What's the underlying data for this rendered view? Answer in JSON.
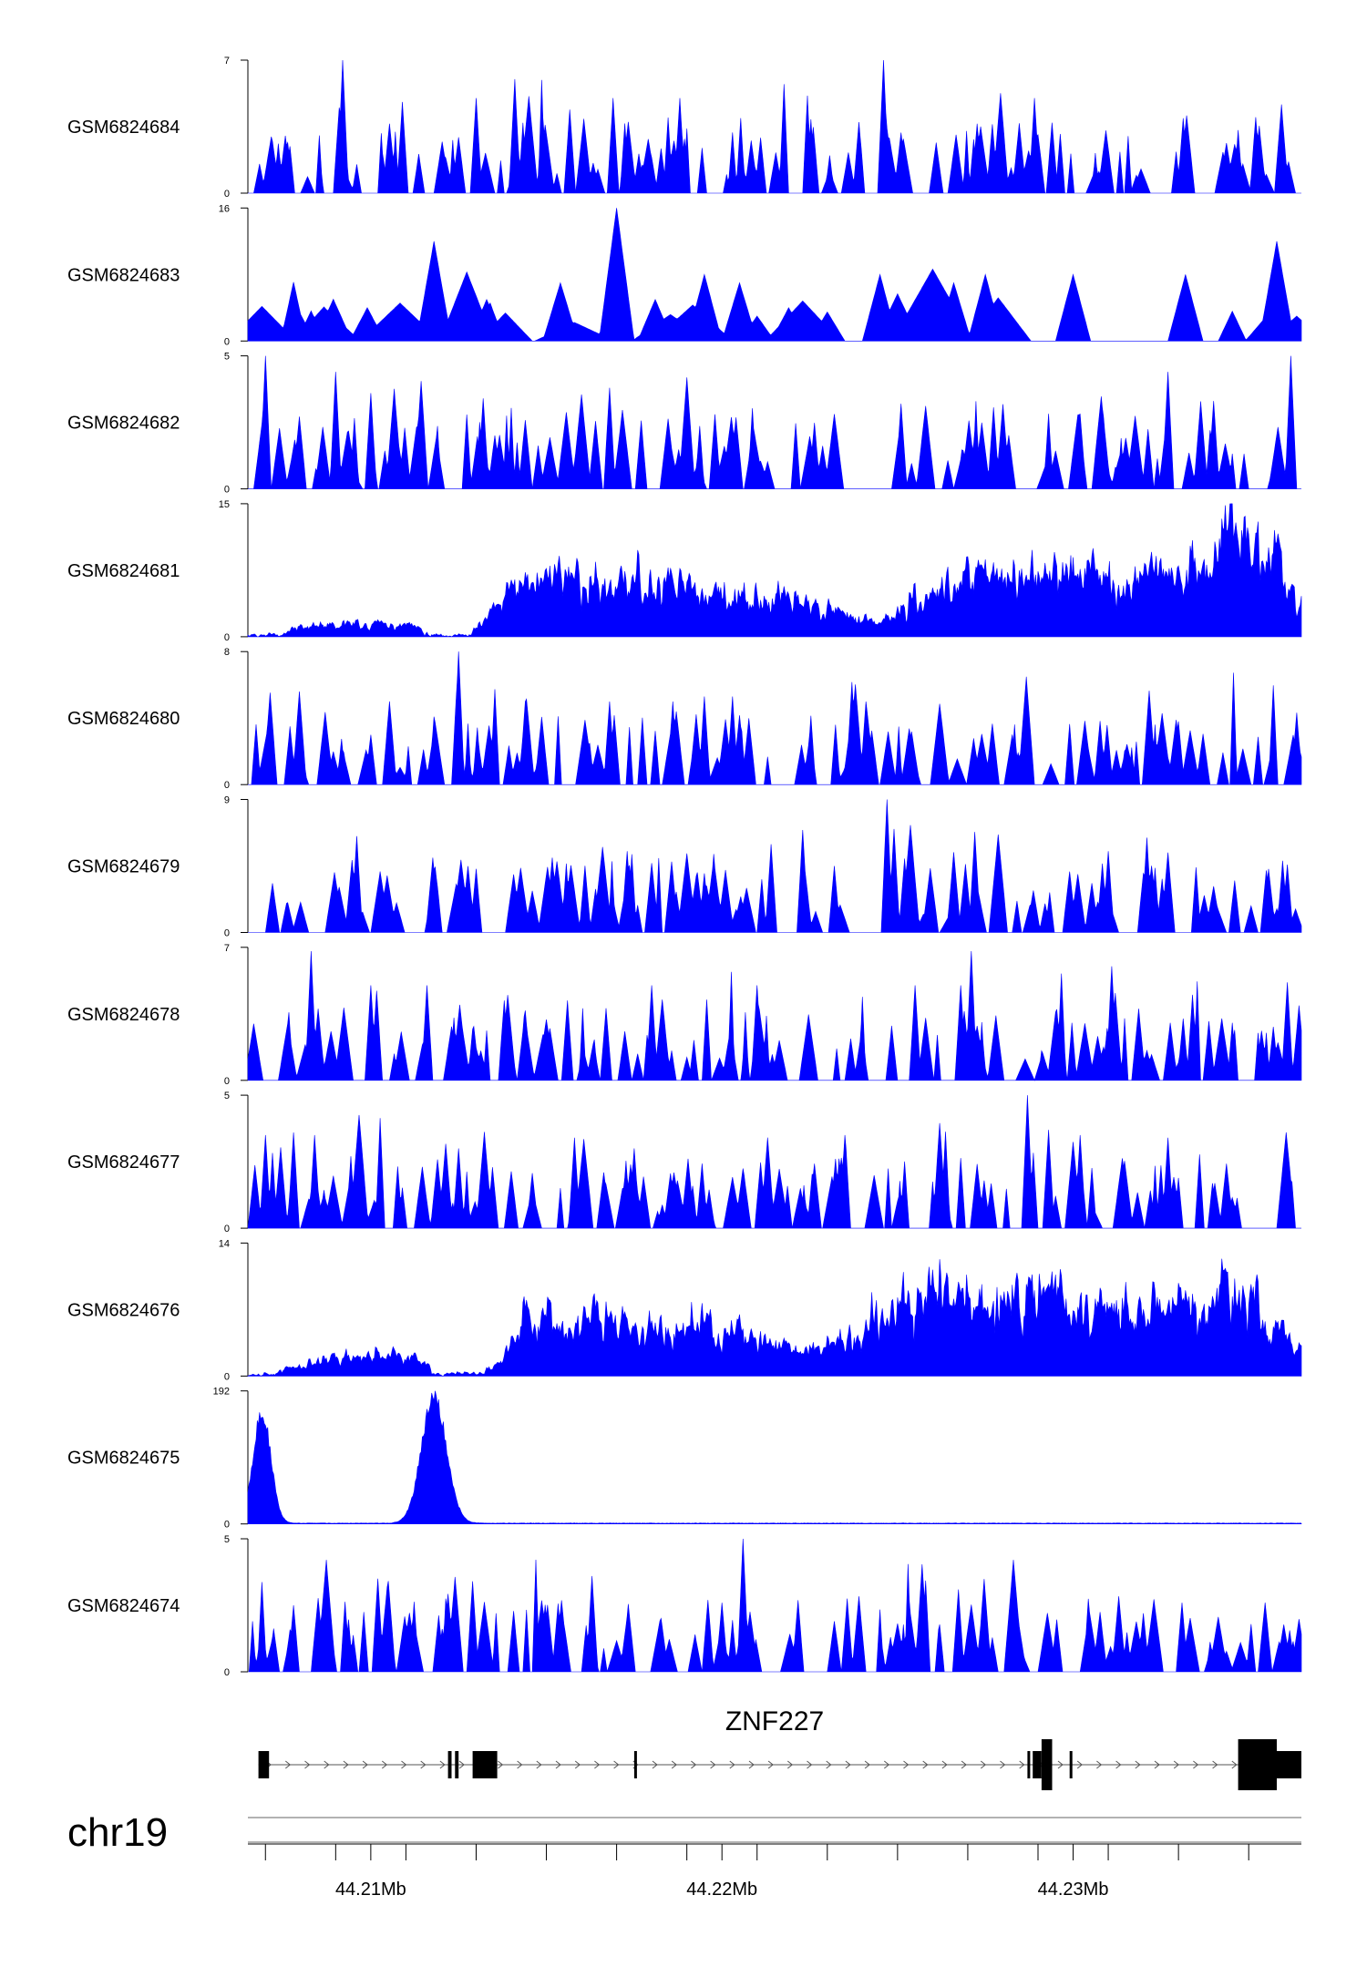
{
  "chart_data": {
    "type": "area",
    "chromosome": "chr19",
    "region": {
      "start": 44.2065,
      "end": 44.2365,
      "unit": "Mb"
    },
    "x_ticks": [
      44.207,
      44.209,
      44.211,
      44.213,
      44.215,
      44.217,
      44.219,
      44.221,
      44.223,
      44.225,
      44.227,
      44.229,
      44.231,
      44.233,
      44.235
    ],
    "x_tick_labels": [
      {
        "pos": 44.21,
        "text": "44.21Mb"
      },
      {
        "pos": 44.22,
        "text": "44.22Mb"
      },
      {
        "pos": 44.23,
        "text": "44.23Mb"
      }
    ],
    "fill_color": "#0000ff",
    "tracks": [
      {
        "name": "GSM6824684",
        "ymin": 0,
        "ymax": 7,
        "ymin_label": "0",
        "ymax_label": "7",
        "style": "sparse",
        "seed": 11,
        "peaks": [
          [
            44.2092,
            7
          ],
          [
            44.2141,
            6
          ],
          [
            44.2246,
            7
          ],
          [
            44.213,
            5
          ],
          [
            44.2169,
            5
          ],
          [
            44.2188,
            5
          ],
          [
            44.2109,
            4.8
          ],
          [
            44.2289,
            5
          ],
          [
            44.2352,
            4
          ],
          [
            44.2091,
            4.5
          ]
        ]
      },
      {
        "name": "GSM6824683",
        "ymin": 0,
        "ymax": 16,
        "ymin_label": "0",
        "ymax_label": "16",
        "style": "sparse_tri",
        "seed": 23,
        "peaks": [
          [
            44.217,
            16
          ],
          [
            44.2118,
            12
          ],
          [
            44.2358,
            12
          ],
          [
            44.2195,
            8
          ],
          [
            44.2219,
            4
          ],
          [
            44.223,
            3.5
          ],
          [
            44.2245,
            8
          ],
          [
            44.226,
            8
          ],
          [
            44.2275,
            8
          ],
          [
            44.23,
            8
          ],
          [
            44.2332,
            8
          ],
          [
            44.2079,
            4
          ],
          [
            44.2099,
            4
          ],
          [
            44.2133,
            5
          ],
          [
            44.2154,
            7
          ],
          [
            44.2181,
            5
          ],
          [
            44.221,
            3
          ],
          [
            44.2205,
            7
          ],
          [
            44.2266,
            7
          ]
        ]
      },
      {
        "name": "GSM6824682",
        "ymin": 0,
        "ymax": 5,
        "ymin_label": "0",
        "ymax_label": "5",
        "style": "sparse",
        "seed": 37,
        "peaks": [
          [
            44.207,
            5
          ],
          [
            44.209,
            4.4
          ],
          [
            44.2168,
            3.8
          ],
          [
            44.2327,
            4.4
          ],
          [
            44.2362,
            5
          ],
          [
            44.234,
            3.3
          ],
          [
            44.2251,
            3.2
          ],
          [
            44.21,
            3.6
          ],
          [
            44.2132,
            3.4
          ],
          [
            44.2198,
            2.8
          ]
        ]
      },
      {
        "name": "GSM6824681",
        "ymin": 0,
        "ymax": 15,
        "ymin_label": "0",
        "ymax_label": "15",
        "style": "dense",
        "seed": 41,
        "envelope": [
          [
            44.2065,
            0.3
          ],
          [
            44.208,
            1.2
          ],
          [
            44.2095,
            1.8
          ],
          [
            44.211,
            1.5
          ],
          [
            44.2121,
            0.4
          ],
          [
            44.2129,
            0.8
          ],
          [
            44.2137,
            5
          ],
          [
            44.215,
            8.5
          ],
          [
            44.2165,
            7.2
          ],
          [
            44.218,
            7.5
          ],
          [
            44.22,
            5.5
          ],
          [
            44.2215,
            5.2
          ],
          [
            44.223,
            3.5
          ],
          [
            44.2245,
            1.5
          ],
          [
            44.2255,
            5.5
          ],
          [
            44.227,
            7.5
          ],
          [
            44.2285,
            8
          ],
          [
            44.23,
            9
          ],
          [
            44.2315,
            7
          ],
          [
            44.2335,
            10
          ],
          [
            44.235,
            12.5
          ],
          [
            44.2358,
            9
          ],
          [
            44.2365,
            4
          ]
        ]
      },
      {
        "name": "GSM6824680",
        "ymin": 0,
        "ymax": 8,
        "ymin_label": "0",
        "ymax_label": "8",
        "style": "sparse",
        "seed": 53,
        "peaks": [
          [
            44.2125,
            8
          ],
          [
            44.2195,
            5.3
          ],
          [
            44.2203,
            5.3
          ],
          [
            44.2144,
            5
          ],
          [
            44.2168,
            5
          ],
          [
            44.2186,
            5
          ],
          [
            44.2241,
            5
          ],
          [
            44.21,
            3
          ],
          [
            44.2077,
            3.5
          ],
          [
            44.233,
            3.8
          ]
        ]
      },
      {
        "name": "GSM6824679",
        "ymin": 0,
        "ymax": 9,
        "ymin_label": "0",
        "ymax_label": "9",
        "style": "sparse",
        "seed": 61,
        "peaks": [
          [
            44.2247,
            9
          ],
          [
            44.2249,
            7
          ],
          [
            44.2252,
            5
          ],
          [
            44.2272,
            6.8
          ],
          [
            44.2173,
            5.5
          ],
          [
            44.2232,
            4.5
          ],
          [
            44.231,
            5.5
          ],
          [
            44.232,
            4
          ],
          [
            44.2105,
            2.8
          ],
          [
            44.213,
            4.3
          ],
          [
            44.2355,
            4.2
          ],
          [
            44.2195,
            4
          ]
        ]
      },
      {
        "name": "GSM6824678",
        "ymin": 0,
        "ymax": 7,
        "ymin_label": "0",
        "ymax_label": "7",
        "style": "sparse",
        "seed": 73,
        "peaks": [
          [
            44.2083,
            6.8
          ],
          [
            44.2271,
            6.8
          ],
          [
            44.2311,
            6
          ],
          [
            44.21,
            5
          ],
          [
            44.2116,
            5
          ],
          [
            44.2138,
            4.2
          ],
          [
            44.2156,
            4.2
          ],
          [
            44.218,
            5
          ],
          [
            44.221,
            5
          ],
          [
            44.2255,
            5
          ],
          [
            44.2268,
            5
          ],
          [
            44.2334,
            4.5
          ]
        ]
      },
      {
        "name": "GSM6824677",
        "ymin": 0,
        "ymax": 5,
        "ymin_label": "0",
        "ymax_label": "5",
        "style": "sparse",
        "seed": 89,
        "peaks": [
          [
            44.2287,
            5
          ],
          [
            44.207,
            3.5
          ],
          [
            44.2078,
            3.6
          ],
          [
            44.2084,
            3.5
          ],
          [
            44.2125,
            3
          ],
          [
            44.2158,
            3.4
          ],
          [
            44.2175,
            3
          ],
          [
            44.2235,
            3.5
          ],
          [
            44.2293,
            3.7
          ],
          [
            44.2302,
            3.5
          ],
          [
            44.2327,
            3.4
          ]
        ]
      },
      {
        "name": "GSM6824676",
        "ymin": 0,
        "ymax": 14,
        "ymin_label": "0",
        "ymax_label": "14",
        "style": "dense",
        "seed": 97,
        "envelope": [
          [
            44.2065,
            0.3
          ],
          [
            44.208,
            1.3
          ],
          [
            44.2095,
            2.3
          ],
          [
            44.211,
            2.5
          ],
          [
            44.212,
            0.4
          ],
          [
            44.213,
            0.6
          ],
          [
            44.2137,
            1.5
          ],
          [
            44.2144,
            7
          ],
          [
            44.2155,
            6.5
          ],
          [
            44.2165,
            8
          ],
          [
            44.2175,
            6
          ],
          [
            44.2185,
            5
          ],
          [
            44.2195,
            6.5
          ],
          [
            44.221,
            4.5
          ],
          [
            44.2225,
            3.5
          ],
          [
            44.224,
            5
          ],
          [
            44.225,
            9
          ],
          [
            44.226,
            10
          ],
          [
            44.2275,
            8.5
          ],
          [
            44.229,
            11
          ],
          [
            44.2305,
            7
          ],
          [
            44.232,
            8
          ],
          [
            44.2335,
            9
          ],
          [
            44.2348,
            11
          ],
          [
            44.2358,
            6
          ],
          [
            44.2365,
            3
          ]
        ]
      },
      {
        "name": "GSM6824675",
        "ymin": 0,
        "ymax": 192,
        "ymin_label": "0",
        "ymax_label": "192",
        "style": "smooth",
        "seed": 101,
        "bumps": [
          [
            44.2069,
            165,
            0.00025
          ],
          [
            44.2118,
            190,
            0.00035
          ]
        ]
      },
      {
        "name": "GSM6824674",
        "ymin": 0,
        "ymax": 5,
        "ymin_label": "0",
        "ymax_label": "5",
        "style": "sparse",
        "seed": 113,
        "peaks": [
          [
            44.2206,
            5
          ],
          [
            44.2163,
            3.6
          ],
          [
            44.2102,
            3.5
          ],
          [
            44.2129,
            3.4
          ],
          [
            44.2078,
            2.5
          ],
          [
            44.2196,
            2.7
          ],
          [
            44.22,
            2.6
          ],
          [
            44.2331,
            2.6
          ],
          [
            44.232,
            2.2
          ]
        ]
      }
    ],
    "gene": {
      "name": "ZNF227",
      "strand": "+",
      "tx_start": 44.2068,
      "tx_end": 44.2365,
      "exons": [
        {
          "start": 44.2068,
          "end": 44.2071,
          "thick": false
        },
        {
          "start": 44.2122,
          "end": 44.2123,
          "thick": false
        },
        {
          "start": 44.2124,
          "end": 44.2125,
          "thick": false
        },
        {
          "start": 44.2129,
          "end": 44.2136,
          "thick": false
        },
        {
          "start": 44.2175,
          "end": 44.21755,
          "thick": false
        },
        {
          "start": 44.2287,
          "end": 44.22875,
          "thick": false
        },
        {
          "start": 44.22885,
          "end": 44.2291,
          "thick": false
        },
        {
          "start": 44.2291,
          "end": 44.2294,
          "thick": true
        },
        {
          "start": 44.2299,
          "end": 44.22995,
          "thick": false
        },
        {
          "start": 44.2347,
          "end": 44.2358,
          "thick": true
        },
        {
          "start": 44.2358,
          "end": 44.2365,
          "thick": false
        }
      ]
    }
  }
}
